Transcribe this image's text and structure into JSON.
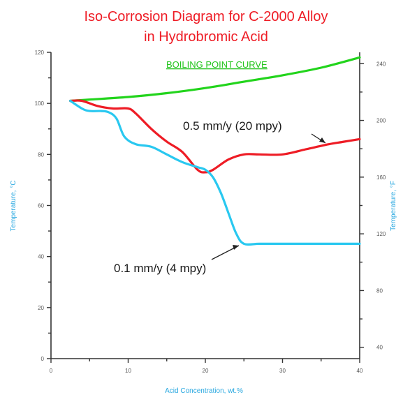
{
  "chart_data": {
    "type": "line",
    "title_lines": [
      "Iso-Corrosion Diagram for C-2000 Alloy",
      "in Hydrobromic Acid"
    ],
    "xlabel": "Acid Concentration, wt.%",
    "ylabel_left": "Temperature, °C",
    "ylabel_right": "Temperature, °F",
    "xlim": [
      0,
      40
    ],
    "ylim_left": [
      0,
      120
    ],
    "x_ticks": [
      "0",
      "10",
      "20",
      "30",
      "40"
    ],
    "y_ticks_left": [
      "0",
      "20",
      "40",
      "60",
      "80",
      "100",
      "120"
    ],
    "y_ticks_right": [
      "40",
      "80",
      "120",
      "160",
      "200",
      "240"
    ],
    "grid": false,
    "series": [
      {
        "name": "BOILING POINT CURVE",
        "color": "#22d41c",
        "x": [
          2.5,
          5,
          10,
          15,
          20,
          25,
          30,
          35,
          40
        ],
        "y": [
          101,
          101.5,
          102.5,
          104,
          106,
          108.5,
          111,
          114,
          118
        ]
      },
      {
        "name": "0.5 mm/y (20 mpy)",
        "color": "#ee1c25",
        "x": [
          2.5,
          4,
          6,
          8,
          10,
          11,
          13,
          15,
          17,
          19,
          20,
          21,
          23,
          25,
          27,
          30,
          33,
          36,
          38,
          40
        ],
        "y": [
          101,
          101,
          99,
          98,
          98,
          96,
          90,
          85,
          81,
          74,
          73,
          74,
          78,
          80,
          80,
          80,
          82,
          84,
          85,
          86
        ]
      },
      {
        "name": "0.1 mm/y (4 mpy)",
        "color": "#29c8f0",
        "x": [
          2.5,
          4,
          5,
          6.5,
          7.5,
          8.5,
          9.5,
          11,
          13,
          15,
          17,
          19,
          20,
          21,
          22,
          23,
          24,
          25,
          27,
          30,
          35,
          40
        ],
        "y": [
          101,
          98,
          97,
          97,
          96.5,
          94,
          87,
          84,
          83,
          80,
          77,
          75,
          74,
          71,
          65,
          57,
          49,
          45,
          45,
          45,
          45,
          45
        ]
      }
    ]
  }
}
